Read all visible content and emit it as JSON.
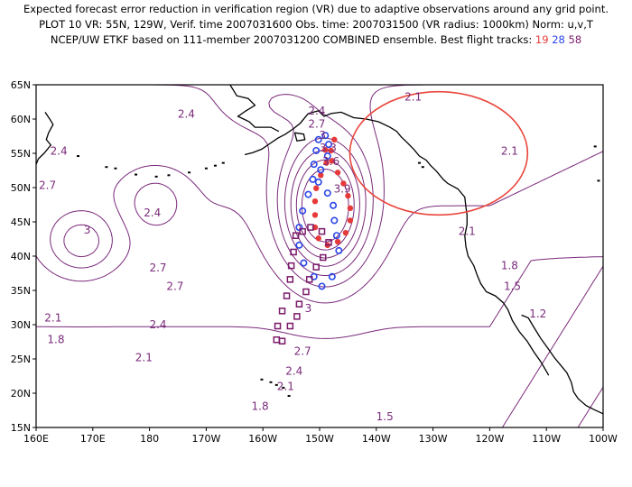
{
  "titles": {
    "line1": "Expected forecast error reduction in verification region (VR) due to adaptive observations around any grid point.",
    "line2": "PLOT 10 VR: 55N, 129W, Verif. time 2007031600 Obs. time: 2007031500 (VR radius: 1000km) Norm: u,v,T",
    "line3": "NCEP/UW ETKF based on 111-member 2007031200 COMBINED ensemble.  Best flight tracks:",
    "track_a": "19",
    "track_b": "28",
    "track_c": "58"
  },
  "axes": {
    "lon_labels": [
      "160E",
      "170E",
      "180",
      "170W",
      "160W",
      "150W",
      "140W",
      "130W",
      "120W",
      "110W",
      "100W"
    ],
    "lat_labels": [
      "65N",
      "60N",
      "55N",
      "50N",
      "45N",
      "40N",
      "35N",
      "30N",
      "25N",
      "20N",
      "15N"
    ]
  },
  "contour_labels": [
    {
      "text": "2.4",
      "lon": -173.5,
      "lat": 60.7
    },
    {
      "text": "2.4",
      "lon": -150.5,
      "lat": 61.2
    },
    {
      "text": "2.1",
      "lon": -133.5,
      "lat": 63.2
    },
    {
      "text": "2.7",
      "lon": -150.5,
      "lat": 59.3
    },
    {
      "text": "3",
      "lon": -149.5,
      "lat": 57.6
    },
    {
      "text": "3.3",
      "lon": -148.5,
      "lat": 55.8
    },
    {
      "text": "3.6",
      "lon": -148.0,
      "lat": 53.8
    },
    {
      "text": "3.9",
      "lon": -146.0,
      "lat": 49.8
    },
    {
      "text": "2.4",
      "lon": 164.0,
      "lat": 55.3
    },
    {
      "text": "2.7",
      "lon": 162.0,
      "lat": 50.3
    },
    {
      "text": "3",
      "lon": 169.0,
      "lat": 43.8
    },
    {
      "text": "2.4",
      "lon": 180.5,
      "lat": 46.3
    },
    {
      "text": "2.7",
      "lon": -178.5,
      "lat": 38.3
    },
    {
      "text": "2.7",
      "lon": -175.5,
      "lat": 35.6
    },
    {
      "text": "2.1",
      "lon": -116.5,
      "lat": 55.3
    },
    {
      "text": "2.1",
      "lon": -124.0,
      "lat": 43.6
    },
    {
      "text": "1.8",
      "lon": -116.5,
      "lat": 38.6
    },
    {
      "text": "1.5",
      "lon": -116.0,
      "lat": 35.6
    },
    {
      "text": "1.2",
      "lon": -111.5,
      "lat": 31.6
    },
    {
      "text": "2.1",
      "lon": 163.0,
      "lat": 31.0
    },
    {
      "text": "1.8",
      "lon": 163.5,
      "lat": 27.8
    },
    {
      "text": "2.4",
      "lon": 181.5,
      "lat": 30.0
    },
    {
      "text": "2.1",
      "lon": 179.0,
      "lat": 25.2
    },
    {
      "text": "3",
      "lon": -152.0,
      "lat": 32.4
    },
    {
      "text": "2.7",
      "lon": -153.0,
      "lat": 26.1
    },
    {
      "text": "2.4",
      "lon": -154.5,
      "lat": 23.2
    },
    {
      "text": "2.1",
      "lon": -156.0,
      "lat": 21.0
    },
    {
      "text": "1.8",
      "lon": -160.5,
      "lat": 18.1
    },
    {
      "text": "1.5",
      "lon": -138.5,
      "lat": 16.6
    }
  ],
  "verification_region": {
    "center_lon": -129.0,
    "center_lat": 55.0,
    "radius_km": 1000,
    "color": "#e8463c"
  },
  "flight_tracks": [
    {
      "id": "19",
      "color": "#e63a3a",
      "marker": "filled-circle",
      "points": [
        [
          -149.0,
          55.5
        ],
        [
          -147.8,
          53.9
        ],
        [
          -146.8,
          52.2
        ],
        [
          -145.8,
          50.6
        ],
        [
          -145.0,
          48.8
        ],
        [
          -144.6,
          47.0
        ],
        [
          -144.6,
          45.2
        ],
        [
          -145.4,
          43.4
        ],
        [
          -146.8,
          42.1
        ],
        [
          -148.6,
          41.6
        ],
        [
          -150.2,
          42.6
        ],
        [
          -150.8,
          44.2
        ],
        [
          -150.8,
          46.0
        ],
        [
          -150.8,
          48.0
        ],
        [
          -150.6,
          49.9
        ],
        [
          -149.8,
          51.8
        ],
        [
          -148.8,
          53.6
        ],
        [
          -148.0,
          55.4
        ],
        [
          -147.4,
          57.0
        ]
      ]
    },
    {
      "id": "28",
      "color": "#2a45e8",
      "marker": "open-circle",
      "points": [
        [
          -149.0,
          57.6
        ],
        [
          -148.4,
          56.3
        ],
        [
          -148.6,
          54.6
        ],
        [
          -149.8,
          52.6
        ],
        [
          -150.2,
          50.8
        ],
        [
          -148.6,
          49.2
        ],
        [
          -147.6,
          47.4
        ],
        [
          -147.4,
          45.2
        ],
        [
          -147.0,
          43.0
        ],
        [
          -146.6,
          40.8
        ],
        [
          -147.8,
          37.0
        ],
        [
          -149.6,
          35.6
        ],
        [
          -151.0,
          37.0
        ],
        [
          -152.8,
          39.0
        ],
        [
          -153.6,
          41.6
        ],
        [
          -153.6,
          44.2
        ],
        [
          -153.0,
          46.6
        ],
        [
          -152.0,
          49.0
        ],
        [
          -151.2,
          51.2
        ],
        [
          -151.0,
          53.4
        ],
        [
          -150.6,
          55.4
        ],
        [
          -150.2,
          57.0
        ]
      ]
    },
    {
      "id": "58",
      "color": "#7a1a6a",
      "marker": "open-square",
      "points": [
        [
          -154.2,
          43.0
        ],
        [
          -154.6,
          40.6
        ],
        [
          -155.0,
          38.6
        ],
        [
          -155.2,
          36.6
        ],
        [
          -155.8,
          34.2
        ],
        [
          -156.6,
          32.0
        ],
        [
          -157.4,
          29.8
        ],
        [
          -157.6,
          27.8
        ],
        [
          -156.6,
          27.6
        ],
        [
          -155.2,
          29.8
        ],
        [
          -154.0,
          31.2
        ],
        [
          -153.6,
          33.0
        ],
        [
          -152.4,
          34.8
        ],
        [
          -151.8,
          36.6
        ],
        [
          -150.6,
          38.4
        ],
        [
          -149.4,
          39.8
        ],
        [
          -148.4,
          42.0
        ],
        [
          -149.6,
          43.6
        ],
        [
          -151.6,
          44.2
        ],
        [
          -153.0,
          43.6
        ]
      ]
    }
  ],
  "colors": {
    "contour": "#7a2a7a",
    "coast": "#000000",
    "circle": "#e8463c"
  }
}
